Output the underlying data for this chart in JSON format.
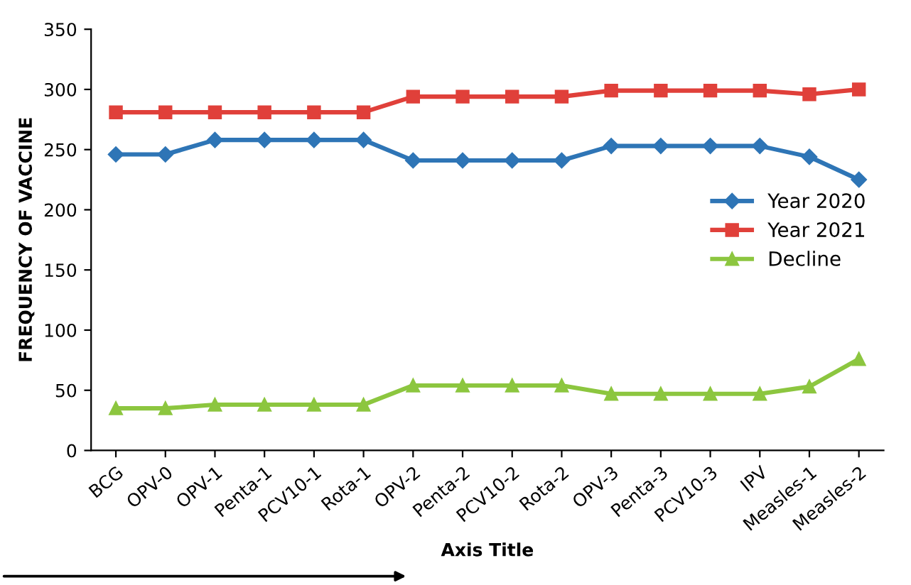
{
  "chart_data": {
    "type": "line",
    "xlabel": "Axis Title",
    "ylabel": "FREQUENCY OF VACCINE",
    "categories": [
      "BCG",
      "OPV-0",
      "OPV-1",
      "Penta-1",
      "PCV10-1",
      "Rota-1",
      "OPV-2",
      "Penta-2",
      "PCV10-2",
      "Rota-2",
      "OPV-3",
      "Penta-3",
      "PCV10-3",
      "IPV",
      "Measles-1",
      "Measles-2"
    ],
    "series": [
      {
        "name": "Year 2020",
        "color": "#2e75b6",
        "marker": "diamond",
        "values": [
          246,
          246,
          258,
          258,
          258,
          258,
          241,
          241,
          241,
          241,
          253,
          253,
          253,
          253,
          244,
          225
        ]
      },
      {
        "name": "Year 2021",
        "color": "#e0403a",
        "marker": "square",
        "values": [
          281,
          281,
          281,
          281,
          281,
          281,
          294,
          294,
          294,
          294,
          299,
          299,
          299,
          299,
          296,
          300
        ]
      },
      {
        "name": "Decline",
        "color": "#8cc63f",
        "marker": "triangle",
        "values": [
          35,
          35,
          38,
          38,
          38,
          38,
          54,
          54,
          54,
          54,
          47,
          47,
          47,
          47,
          53,
          76
        ]
      }
    ],
    "ylim": [
      0,
      350
    ],
    "yticks": [
      0,
      50,
      100,
      150,
      200,
      250,
      300,
      350
    ],
    "grid": false,
    "legend": "right",
    "line_style": "solid"
  }
}
